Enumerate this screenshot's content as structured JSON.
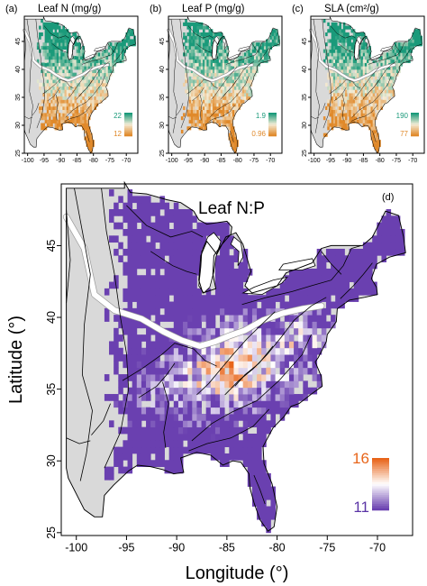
{
  "panels": [
    {
      "id": "a",
      "tag": "(a)",
      "title": "Leaf N (mg/g)",
      "legend_high": "22",
      "legend_low": "12",
      "palette": {
        "high": "#1a9a7a",
        "mid": "#f4ecd6",
        "low": "#e0892a"
      },
      "north_high": 0.8,
      "seed": 11
    },
    {
      "id": "b",
      "tag": "(b)",
      "title": "Leaf P (mg/g)",
      "legend_high": "1.9",
      "legend_low": "0.96",
      "palette": {
        "high": "#1a9a7a",
        "mid": "#f4ecd6",
        "low": "#e0892a"
      },
      "north_high": 0.55,
      "seed": 23
    },
    {
      "id": "c",
      "tag": "(c)",
      "title": "SLA (cm²/g)",
      "legend_high": "190",
      "legend_low": "77",
      "palette": {
        "high": "#1a9a7a",
        "mid": "#f4ecd6",
        "low": "#e0892a"
      },
      "north_high": 0.65,
      "seed": 37
    }
  ],
  "small_axes": {
    "x_ticks": [
      "-100",
      "-95",
      "-90",
      "-85",
      "-80",
      "-75",
      "-70"
    ],
    "y_ticks": [
      "45",
      "40",
      "35",
      "30",
      "25"
    ]
  },
  "main": {
    "tag": "(d)",
    "title": "Leaf N:P",
    "xlabel": "Longitude (°)",
    "ylabel": "Latitude (°)",
    "x_ticks": [
      "-100",
      "-95",
      "-90",
      "-85",
      "-80",
      "-75",
      "-70"
    ],
    "y_ticks": [
      "45",
      "40",
      "35",
      "30",
      "25"
    ],
    "legend_high": "16",
    "legend_low": "11",
    "colors": {
      "high": "#e8651a",
      "mid": "#ffffff",
      "low": "#6a40b0",
      "high_text": "#e8651a",
      "low_text": "#5b35a6"
    },
    "seed": 71
  },
  "map_colors": {
    "land": "#d9d9d9",
    "border": "#000000",
    "water": "#ffffff",
    "divide": "#ffffff"
  }
}
